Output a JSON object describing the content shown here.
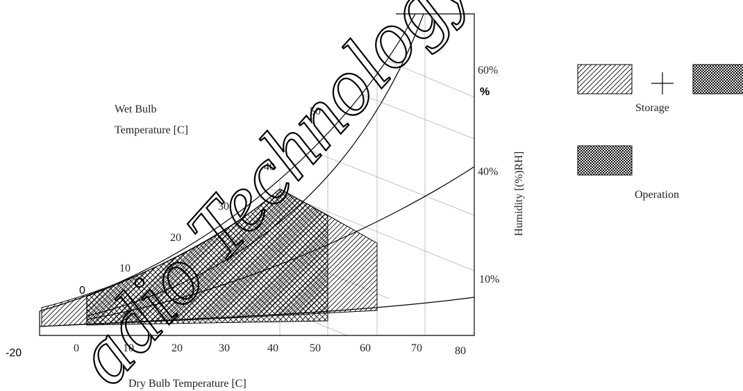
{
  "chart_data": {
    "type": "diagram",
    "xlabel": "Dry Bulb Temperature [C]",
    "x_ticks": [
      "-20",
      "0",
      "10",
      "20",
      "30",
      "40",
      "50",
      "60",
      "70",
      "80"
    ],
    "wet_bulb_label_line1": "Wet Bulb",
    "wet_bulb_label_line2": "Temperature [C]",
    "wet_bulb_ticks": [
      "0",
      "10",
      "20",
      "30",
      "40",
      "50"
    ],
    "ylabel": "Humidity [(%)RH]",
    "humidity_ticks": [
      "60%",
      "%",
      "40%",
      "10%"
    ],
    "legend": {
      "storage_label": "Storage",
      "plus_sign": "+",
      "operation_label": "Operation"
    },
    "ranges": {
      "storage": {
        "dry_bulb_min": -20,
        "dry_bulb_max": 60
      },
      "operation": {
        "dry_bulb_min": 0,
        "dry_bulb_max": 40
      }
    },
    "watermark": "adio Technology"
  }
}
